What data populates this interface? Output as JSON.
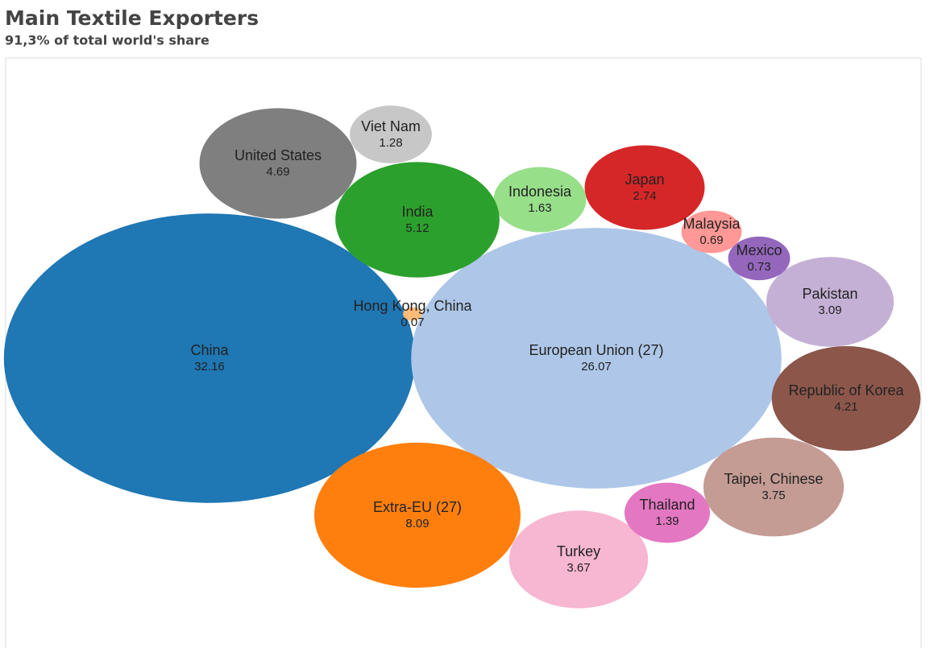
{
  "chart_data": {
    "type": "bubble",
    "title": "Main Textile Exporters",
    "subtitle": "91,3% of total world's share",
    "categories": [
      "China",
      "European Union (27)",
      "Hong Kong, China",
      "Extra-EU (27)",
      "Turkey",
      "Thailand",
      "Taipei, Chinese",
      "Republic of  Korea",
      "Pakistan",
      "Mexico",
      "Malaysia",
      "Japan",
      "Indonesia",
      "India",
      "United States",
      "Viet Nam"
    ],
    "values": [
      32.16,
      26.07,
      0.07,
      8.09,
      3.67,
      1.39,
      3.75,
      4.21,
      3.09,
      0.73,
      0.69,
      2.74,
      1.63,
      5.12,
      4.69,
      1.28
    ],
    "colors": [
      "#1f77b4",
      "#aec7e8",
      "#ffbb78",
      "#ff7f0e",
      "#f7b6d2",
      "#e377c2",
      "#c49c94",
      "#8c564b",
      "#c5b0d5",
      "#9467bd",
      "#ff9896",
      "#d62728",
      "#98df8a",
      "#2ca02c",
      "#7f7f7f",
      "#c7c7c7"
    ]
  }
}
